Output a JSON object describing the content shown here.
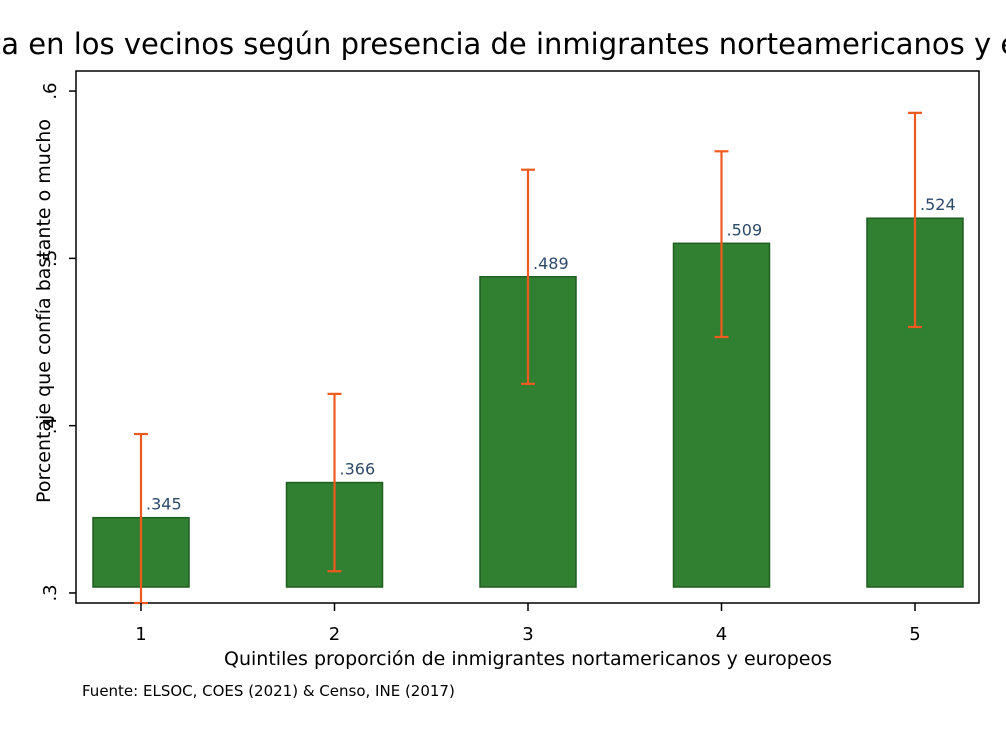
{
  "chart_data": {
    "type": "bar",
    "title": "Confianza en los vecinos según presencia de inmigrantes norteamericanos y europeos",
    "xlabel": "Quintiles proporción de inmigrantes nortamericanos y europeos",
    "ylabel": "Porcentaje que confía bastante o mucho",
    "categories": [
      "1",
      "2",
      "3",
      "4",
      "5"
    ],
    "values": [
      0.345,
      0.366,
      0.489,
      0.509,
      0.524
    ],
    "value_labels": [
      ".345",
      ".366",
      ".489",
      ".509",
      ".524"
    ],
    "ci_low": [
      0.294,
      0.313,
      0.425,
      0.453,
      0.459
    ],
    "ci_high": [
      0.395,
      0.419,
      0.553,
      0.564,
      0.587
    ],
    "ylim": [
      0.294,
      0.612
    ],
    "yticks": [
      0.3,
      0.4,
      0.5,
      0.6
    ],
    "ytick_labels": [
      ".3",
      ".4",
      ".5",
      ".6"
    ],
    "grid": false,
    "legend": "none",
    "source": "Fuente: ELSOC, COES (2021) & Censo, INE (2017)",
    "colors": {
      "bar": "#317f31",
      "bar_edge": "#1f5f1f",
      "error_bar": "#f05a1e",
      "data_label": "#2e4a6b"
    }
  }
}
